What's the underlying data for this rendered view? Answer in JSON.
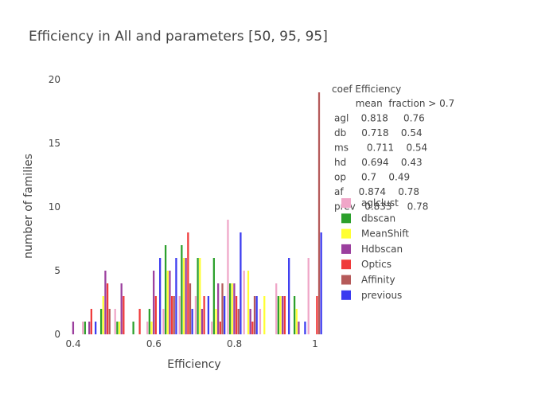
{
  "chart_data": {
    "type": "bar",
    "title": "Efficiency in All  and parameters [50, 95, 95]",
    "xlabel": "Efficiency",
    "ylabel": "number of families",
    "xlim": [
      0.38,
      1.02
    ],
    "ylim": [
      0,
      20
    ],
    "xticks": [
      "0.4",
      "0.6",
      "0.8",
      "1"
    ],
    "yticks": [
      "0",
      "5",
      "10",
      "15",
      "20"
    ],
    "bin_width": 0.04,
    "bin_centers": [
      0.4,
      0.44,
      0.48,
      0.52,
      0.56,
      0.6,
      0.64,
      0.68,
      0.72,
      0.76,
      0.8,
      0.84,
      0.88,
      0.92,
      0.96,
      1.0
    ],
    "grid": false,
    "legend_position": "right",
    "stats_header": "coef Efficiency",
    "stats_lines": [
      "       mean  fraction > 0.7",
      "agl    0.818     0.76",
      "db     0.718    0.54",
      "ms      0.711    0.54",
      "hd     0.694    0.43",
      "op     0.7    0.49",
      "af     0.874    0.78",
      "prev   0.833     0.78"
    ],
    "series": [
      {
        "name": "aglclust",
        "color": "#f0a6c8",
        "values": [
          0,
          1,
          0,
          2,
          0,
          1,
          2,
          3,
          3,
          1,
          9,
          5,
          2,
          4,
          0,
          6
        ]
      },
      {
        "name": "dbscan",
        "color": "#2ca02c",
        "values": [
          0,
          1,
          2,
          1,
          1,
          2,
          7,
          7,
          6,
          6,
          4,
          0,
          0,
          3,
          3,
          0
        ]
      },
      {
        "name": "MeanShift",
        "color": "#ffff33",
        "values": [
          0,
          0,
          3,
          1,
          0,
          1,
          5,
          6,
          6,
          2,
          4,
          5,
          3,
          3,
          2,
          0
        ]
      },
      {
        "name": "Hdbscan",
        "color": "#9b3f9e",
        "values": [
          1,
          1,
          5,
          4,
          0,
          5,
          5,
          6,
          2,
          4,
          4,
          2,
          0,
          3,
          1,
          0
        ]
      },
      {
        "name": "Optics",
        "color": "#ef3a3a",
        "values": [
          0,
          2,
          4,
          3,
          2,
          3,
          3,
          8,
          3,
          1,
          3,
          1,
          0,
          3,
          0,
          3
        ]
      },
      {
        "name": "Affinity",
        "color": "#b55a5a",
        "values": [
          0,
          0,
          2,
          0,
          0,
          0,
          3,
          4,
          0,
          4,
          2,
          3,
          0,
          0,
          0,
          19
        ]
      },
      {
        "name": "previous",
        "color": "#3b3bf0",
        "values": [
          0,
          1,
          0,
          0,
          0,
          6,
          6,
          2,
          3,
          3,
          8,
          3,
          0,
          6,
          1,
          8
        ]
      }
    ]
  }
}
